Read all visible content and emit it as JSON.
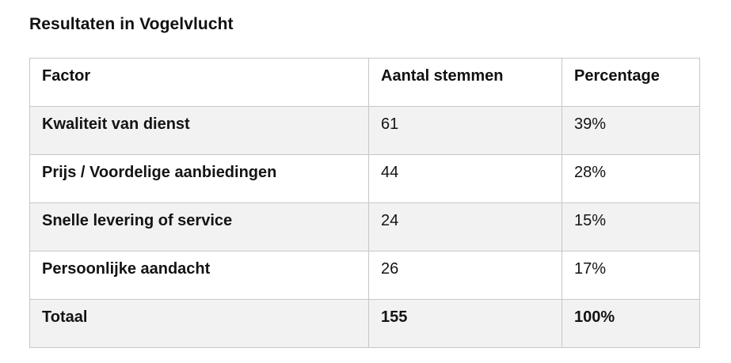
{
  "page": {
    "title": "Resultaten in Vogelvlucht"
  },
  "table": {
    "columns": {
      "factor": "Factor",
      "votes": "Aantal stemmen",
      "percentage": "Percentage"
    },
    "rows": [
      {
        "factor": "Kwaliteit van dienst",
        "votes": "61",
        "percentage": "39%"
      },
      {
        "factor": "Prijs / Voordelige aanbiedingen",
        "votes": "44",
        "percentage": "28%"
      },
      {
        "factor": "Snelle levering of service",
        "votes": "24",
        "percentage": "15%"
      },
      {
        "factor": "Persoonlijke aandacht",
        "votes": "26",
        "percentage": "17%"
      }
    ],
    "total": {
      "factor": "Totaal",
      "votes": "155",
      "percentage": "100%"
    },
    "colors": {
      "stripe_background": "#f2f2f2",
      "border": "#c7c7c7",
      "text": "#141414"
    }
  }
}
